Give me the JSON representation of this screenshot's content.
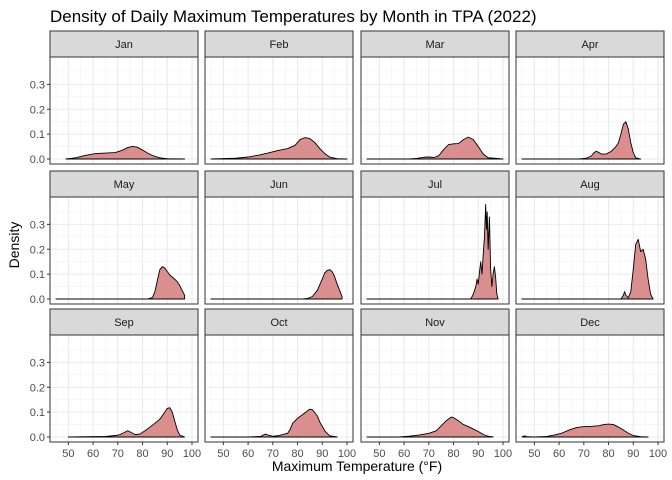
{
  "chart_data": {
    "type": "area",
    "subtype": "faceted density",
    "title": "Density of Daily Maximum Temperatures by Month in TPA (2022)",
    "xlabel": "Maximum Temperature (°F)",
    "ylabel": "Density",
    "xlim": [
      45,
      100
    ],
    "ylim": [
      0,
      0.39
    ],
    "x_ticks": [
      50,
      60,
      70,
      80,
      90,
      100
    ],
    "y_ticks": [
      0.0,
      0.1,
      0.2,
      0.3
    ],
    "y_tick_labels": [
      "0.0",
      "0.1",
      "0.2",
      "0.3"
    ],
    "grid": true,
    "legend": "none",
    "fill_color": "#db8e8e",
    "line_color": "#000000",
    "strip_color": "#d9d9d9",
    "facets": [
      {
        "label": "Jan",
        "points": [
          [
            49,
            0
          ],
          [
            53,
            0.005
          ],
          [
            57,
            0.015
          ],
          [
            61,
            0.022
          ],
          [
            65,
            0.024
          ],
          [
            69,
            0.026
          ],
          [
            72,
            0.036
          ],
          [
            74,
            0.046
          ],
          [
            76,
            0.051
          ],
          [
            78,
            0.047
          ],
          [
            80,
            0.036
          ],
          [
            82,
            0.024
          ],
          [
            84,
            0.014
          ],
          [
            87,
            0.005
          ],
          [
            90,
            0.001
          ],
          [
            97,
            0
          ]
        ]
      },
      {
        "label": "Feb",
        "points": [
          [
            45,
            0
          ],
          [
            55,
            0.003
          ],
          [
            60,
            0.008
          ],
          [
            64,
            0.015
          ],
          [
            68,
            0.024
          ],
          [
            72,
            0.034
          ],
          [
            76,
            0.042
          ],
          [
            79,
            0.055
          ],
          [
            81,
            0.078
          ],
          [
            83,
            0.086
          ],
          [
            85,
            0.082
          ],
          [
            87,
            0.066
          ],
          [
            89,
            0.042
          ],
          [
            91,
            0.022
          ],
          [
            93,
            0.008
          ],
          [
            96,
            0.001
          ],
          [
            100,
            0
          ]
        ]
      },
      {
        "label": "Mar",
        "points": [
          [
            45,
            0
          ],
          [
            62,
            0
          ],
          [
            65,
            0.002
          ],
          [
            68,
            0.007
          ],
          [
            70,
            0.008
          ],
          [
            72,
            0.006
          ],
          [
            74,
            0.013
          ],
          [
            76,
            0.038
          ],
          [
            78,
            0.058
          ],
          [
            80,
            0.061
          ],
          [
            82,
            0.062
          ],
          [
            84,
            0.078
          ],
          [
            86,
            0.088
          ],
          [
            88,
            0.078
          ],
          [
            90,
            0.05
          ],
          [
            92,
            0.02
          ],
          [
            94,
            0.005
          ],
          [
            100,
            0
          ]
        ]
      },
      {
        "label": "Apr",
        "points": [
          [
            45,
            0
          ],
          [
            68,
            0
          ],
          [
            71,
            0.003
          ],
          [
            73,
            0.012
          ],
          [
            74,
            0.024
          ],
          [
            75,
            0.031
          ],
          [
            76,
            0.027
          ],
          [
            77,
            0.02
          ],
          [
            79,
            0.02
          ],
          [
            81,
            0.03
          ],
          [
            83,
            0.05
          ],
          [
            84,
            0.065
          ],
          [
            85,
            0.1
          ],
          [
            86,
            0.14
          ],
          [
            87,
            0.15
          ],
          [
            88,
            0.12
          ],
          [
            89,
            0.065
          ],
          [
            90,
            0.025
          ],
          [
            91,
            0.005
          ],
          [
            93,
            0
          ]
        ]
      },
      {
        "label": "May",
        "points": [
          [
            45,
            0
          ],
          [
            82,
            0
          ],
          [
            84,
            0.006
          ],
          [
            85,
            0.03
          ],
          [
            86,
            0.075
          ],
          [
            87,
            0.118
          ],
          [
            88,
            0.13
          ],
          [
            89,
            0.125
          ],
          [
            90,
            0.11
          ],
          [
            91,
            0.097
          ],
          [
            92,
            0.088
          ],
          [
            93,
            0.08
          ],
          [
            94,
            0.07
          ],
          [
            95,
            0.055
          ],
          [
            96,
            0.035
          ],
          [
            97,
            0.015
          ]
        ]
      },
      {
        "label": "Jun",
        "points": [
          [
            45,
            0
          ],
          [
            82,
            0
          ],
          [
            84,
            0.002
          ],
          [
            86,
            0.01
          ],
          [
            88,
            0.035
          ],
          [
            90,
            0.08
          ],
          [
            91,
            0.105
          ],
          [
            92,
            0.115
          ],
          [
            93,
            0.118
          ],
          [
            94,
            0.11
          ],
          [
            95,
            0.09
          ],
          [
            96,
            0.06
          ],
          [
            97,
            0.035
          ],
          [
            98,
            0.01
          ]
        ]
      },
      {
        "label": "Jul",
        "points": [
          [
            45,
            0
          ],
          [
            87,
            0
          ],
          [
            88,
            0.02
          ],
          [
            89,
            0.05
          ],
          [
            89.5,
            0.08
          ],
          [
            90,
            0.06
          ],
          [
            90.5,
            0.11
          ],
          [
            91,
            0.15
          ],
          [
            91.5,
            0.1
          ],
          [
            92,
            0.18
          ],
          [
            92.5,
            0.25
          ],
          [
            93,
            0.38
          ],
          [
            93.3,
            0.28
          ],
          [
            93.6,
            0.35
          ],
          [
            94,
            0.2
          ],
          [
            94.5,
            0.33
          ],
          [
            95,
            0.12
          ],
          [
            95.5,
            0.05
          ],
          [
            96,
            0.1
          ],
          [
            96.5,
            0.13
          ],
          [
            97,
            0.09
          ],
          [
            97.5,
            0.02
          ],
          [
            98,
            0.002
          ]
        ]
      },
      {
        "label": "Aug",
        "points": [
          [
            45,
            0
          ],
          [
            85,
            0
          ],
          [
            86,
            0.015
          ],
          [
            86.5,
            0.03
          ],
          [
            87,
            0.015
          ],
          [
            88,
            0.005
          ],
          [
            89,
            0.03
          ],
          [
            90,
            0.12
          ],
          [
            91,
            0.22
          ],
          [
            92,
            0.24
          ],
          [
            93,
            0.19
          ],
          [
            94,
            0.2
          ],
          [
            95,
            0.16
          ],
          [
            96,
            0.08
          ],
          [
            97,
            0.02
          ],
          [
            98,
            0
          ]
        ]
      },
      {
        "label": "Sep",
        "points": [
          [
            50,
            0
          ],
          [
            65,
            0.002
          ],
          [
            69,
            0.006
          ],
          [
            71,
            0.01
          ],
          [
            72,
            0.015
          ],
          [
            73,
            0.02
          ],
          [
            74,
            0.025
          ],
          [
            75,
            0.02
          ],
          [
            77,
            0.01
          ],
          [
            79,
            0.012
          ],
          [
            81,
            0.025
          ],
          [
            83,
            0.04
          ],
          [
            85,
            0.055
          ],
          [
            87,
            0.072
          ],
          [
            89,
            0.1
          ],
          [
            90,
            0.115
          ],
          [
            91,
            0.118
          ],
          [
            92,
            0.1
          ],
          [
            93,
            0.065
          ],
          [
            94,
            0.03
          ],
          [
            95,
            0.008
          ],
          [
            97,
            0
          ]
        ]
      },
      {
        "label": "Oct",
        "points": [
          [
            45,
            0
          ],
          [
            60,
            0
          ],
          [
            65,
            0.002
          ],
          [
            67,
            0.012
          ],
          [
            68,
            0.008
          ],
          [
            70,
            0.003
          ],
          [
            72,
            0.005
          ],
          [
            74,
            0.01
          ],
          [
            76,
            0.015
          ],
          [
            77,
            0.03
          ],
          [
            78,
            0.055
          ],
          [
            80,
            0.075
          ],
          [
            82,
            0.09
          ],
          [
            84,
            0.105
          ],
          [
            85,
            0.112
          ],
          [
            86,
            0.11
          ],
          [
            88,
            0.085
          ],
          [
            89,
            0.06
          ],
          [
            91,
            0.025
          ],
          [
            93,
            0.005
          ],
          [
            96,
            0
          ]
        ]
      },
      {
        "label": "Nov",
        "points": [
          [
            45,
            0
          ],
          [
            58,
            0
          ],
          [
            62,
            0.003
          ],
          [
            66,
            0.008
          ],
          [
            70,
            0.015
          ],
          [
            73,
            0.025
          ],
          [
            75,
            0.045
          ],
          [
            77,
            0.065
          ],
          [
            79,
            0.08
          ],
          [
            80,
            0.078
          ],
          [
            82,
            0.065
          ],
          [
            84,
            0.05
          ],
          [
            86,
            0.042
          ],
          [
            88,
            0.032
          ],
          [
            90,
            0.022
          ],
          [
            92,
            0.01
          ],
          [
            94,
            0.003
          ],
          [
            96,
            0
          ]
        ]
      },
      {
        "label": "Dec",
        "points": [
          [
            45,
            0
          ],
          [
            46,
            0.005
          ],
          [
            47,
            0.001
          ],
          [
            50,
            0
          ],
          [
            55,
            0.002
          ],
          [
            58,
            0.008
          ],
          [
            61,
            0.015
          ],
          [
            64,
            0.028
          ],
          [
            67,
            0.038
          ],
          [
            70,
            0.042
          ],
          [
            73,
            0.043
          ],
          [
            76,
            0.045
          ],
          [
            78,
            0.05
          ],
          [
            80,
            0.052
          ],
          [
            82,
            0.05
          ],
          [
            84,
            0.04
          ],
          [
            86,
            0.028
          ],
          [
            88,
            0.015
          ],
          [
            90,
            0.006
          ],
          [
            93,
            0.001
          ],
          [
            96,
            0
          ]
        ]
      }
    ]
  }
}
